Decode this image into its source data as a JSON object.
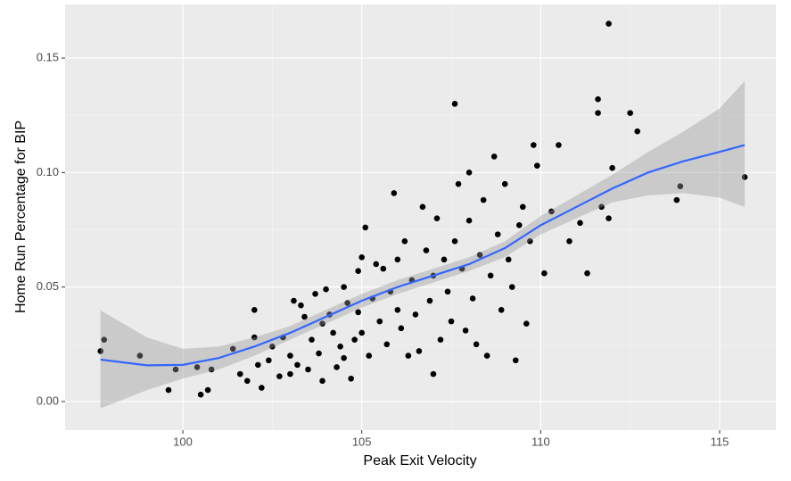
{
  "chart_data": {
    "type": "scatter",
    "x_label": "Peak Exit Velocity",
    "y_label": "Home Run Percentage for BIP",
    "xlim": [
      96.71,
      116.57
    ],
    "ylim": [
      -0.0125,
      0.1734
    ],
    "xticks": [
      100,
      105,
      110,
      115
    ],
    "yticks": [
      {
        "value": 0,
        "label": "0.00"
      },
      {
        "value": 0.05,
        "label": "0.05"
      },
      {
        "value": 0.1,
        "label": "0.10"
      },
      {
        "value": 0.15,
        "label": "0.15"
      }
    ],
    "grid": true,
    "point_color": "#000000",
    "x": [
      97.7,
      97.8,
      98.8,
      99.6,
      99.8,
      100.4,
      100.5,
      100.7,
      100.8,
      101.4,
      101.6,
      101.8,
      102.0,
      102.0,
      102.1,
      102.2,
      102.4,
      102.5,
      102.7,
      102.8,
      103.0,
      103.0,
      103.1,
      103.2,
      103.3,
      103.4,
      103.5,
      103.6,
      103.7,
      103.8,
      103.9,
      103.9,
      104.0,
      104.1,
      104.2,
      104.3,
      104.4,
      104.5,
      104.5,
      104.6,
      104.7,
      104.8,
      104.9,
      104.9,
      105.0,
      105.0,
      105.1,
      105.2,
      105.3,
      105.4,
      105.5,
      105.6,
      105.7,
      105.8,
      105.9,
      106.0,
      106.0,
      106.1,
      106.2,
      106.3,
      106.4,
      106.5,
      106.6,
      106.7,
      106.8,
      106.9,
      107.0,
      107.0,
      107.1,
      107.2,
      107.3,
      107.4,
      107.5,
      107.6,
      107.6,
      107.7,
      107.8,
      107.9,
      108.0,
      108.0,
      108.1,
      108.2,
      108.3,
      108.4,
      108.5,
      108.6,
      108.7,
      108.8,
      108.9,
      109.0,
      109.1,
      109.2,
      109.3,
      109.4,
      109.5,
      109.6,
      109.7,
      109.8,
      109.9,
      110.1,
      110.3,
      110.5,
      110.8,
      111.1,
      111.3,
      111.6,
      111.6,
      111.7,
      111.9,
      111.9,
      112.0,
      112.5,
      112.7,
      113.8,
      113.9,
      115.7
    ],
    "y": [
      0.022,
      0.027,
      0.02,
      0.005,
      0.014,
      0.015,
      0.003,
      0.005,
      0.014,
      0.023,
      0.012,
      0.009,
      0.04,
      0.028,
      0.016,
      0.006,
      0.018,
      0.024,
      0.011,
      0.028,
      0.02,
      0.012,
      0.044,
      0.016,
      0.042,
      0.037,
      0.014,
      0.027,
      0.047,
      0.021,
      0.009,
      0.034,
      0.049,
      0.038,
      0.03,
      0.015,
      0.024,
      0.05,
      0.019,
      0.043,
      0.01,
      0.027,
      0.057,
      0.039,
      0.063,
      0.03,
      0.076,
      0.02,
      0.045,
      0.06,
      0.035,
      0.058,
      0.025,
      0.048,
      0.091,
      0.062,
      0.04,
      0.032,
      0.07,
      0.02,
      0.053,
      0.038,
      0.022,
      0.085,
      0.066,
      0.044,
      0.012,
      0.055,
      0.08,
      0.027,
      0.062,
      0.048,
      0.035,
      0.13,
      0.07,
      0.095,
      0.058,
      0.031,
      0.1,
      0.079,
      0.045,
      0.025,
      0.064,
      0.088,
      0.02,
      0.055,
      0.107,
      0.073,
      0.04,
      0.095,
      0.062,
      0.05,
      0.018,
      0.077,
      0.085,
      0.034,
      0.07,
      0.112,
      0.103,
      0.056,
      0.083,
      0.112,
      0.07,
      0.078,
      0.056,
      0.132,
      0.126,
      0.085,
      0.165,
      0.08,
      0.102,
      0.126,
      0.118,
      0.088,
      0.094,
      0.098
    ],
    "smooth": {
      "color": "#3366FF",
      "band_color": "#999999",
      "x": [
        97.7,
        99,
        100,
        101,
        102,
        103,
        104,
        105,
        106,
        107,
        108,
        109,
        110,
        111,
        112,
        113,
        114,
        115,
        115.7
      ],
      "values": [
        0.0183,
        0.0158,
        0.016,
        0.019,
        0.024,
        0.03,
        0.037,
        0.044,
        0.05,
        0.055,
        0.06,
        0.067,
        0.077,
        0.085,
        0.093,
        0.1,
        0.105,
        0.109,
        0.112
      ],
      "lower": [
        -0.003,
        0.005,
        0.01,
        0.014,
        0.02,
        0.027,
        0.034,
        0.041,
        0.047,
        0.052,
        0.057,
        0.063,
        0.073,
        0.08,
        0.087,
        0.09,
        0.091,
        0.089,
        0.085
      ],
      "upper": [
        0.0398,
        0.028,
        0.023,
        0.024,
        0.028,
        0.033,
        0.04,
        0.047,
        0.053,
        0.058,
        0.063,
        0.07,
        0.081,
        0.09,
        0.099,
        0.109,
        0.118,
        0.128,
        0.14
      ]
    }
  }
}
